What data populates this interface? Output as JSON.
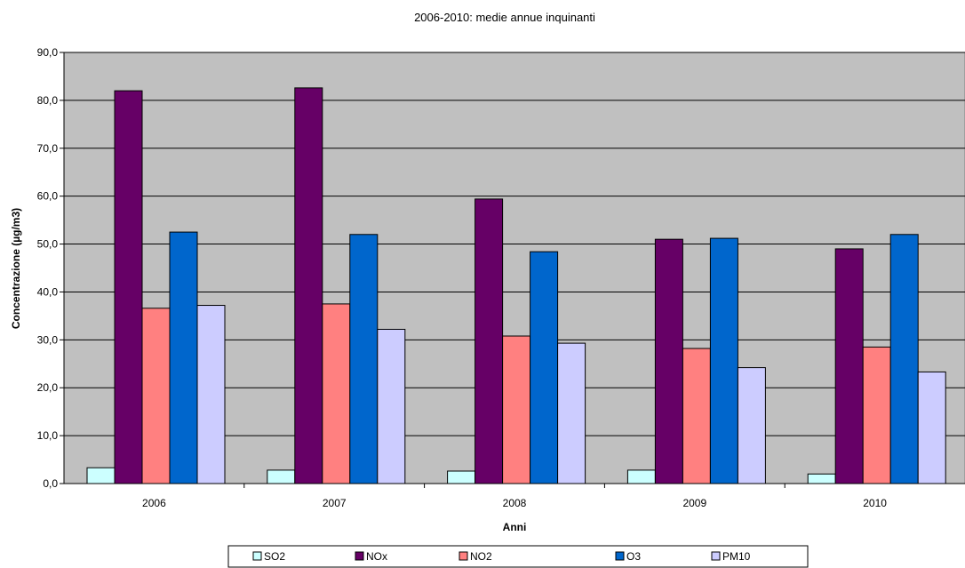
{
  "chart_data": {
    "type": "bar",
    "title": "2006-2010: medie annue inquinanti",
    "xlabel": "Anni",
    "ylabel": "Concentrazione (µg/m3)",
    "categories": [
      "2006",
      "2007",
      "2008",
      "2009",
      "2010"
    ],
    "ylim": [
      0,
      90
    ],
    "ytick_step": 10,
    "ytick_labels": [
      "0,0",
      "10,0",
      "20,0",
      "30,0",
      "40,0",
      "50,0",
      "60,0",
      "70,0",
      "80,0",
      "90,0"
    ],
    "grid": true,
    "legend_position": "bottom",
    "series": [
      {
        "name": "SO2",
        "color": "#ccffff",
        "values": [
          3.3,
          2.8,
          2.6,
          2.8,
          2.0
        ]
      },
      {
        "name": "NOx",
        "color": "#660066",
        "values": [
          82.0,
          82.6,
          59.4,
          51.0,
          49.0
        ]
      },
      {
        "name": "NO2",
        "color": "#ff8080",
        "values": [
          36.6,
          37.5,
          30.8,
          28.2,
          28.5
        ]
      },
      {
        "name": "O3",
        "color": "#0066cc",
        "values": [
          52.5,
          52.0,
          48.4,
          51.2,
          52.0
        ]
      },
      {
        "name": "PM10",
        "color": "#ccccff",
        "values": [
          37.2,
          32.2,
          29.3,
          24.2,
          23.3
        ]
      }
    ],
    "plot_background": "#c0c0c0"
  }
}
